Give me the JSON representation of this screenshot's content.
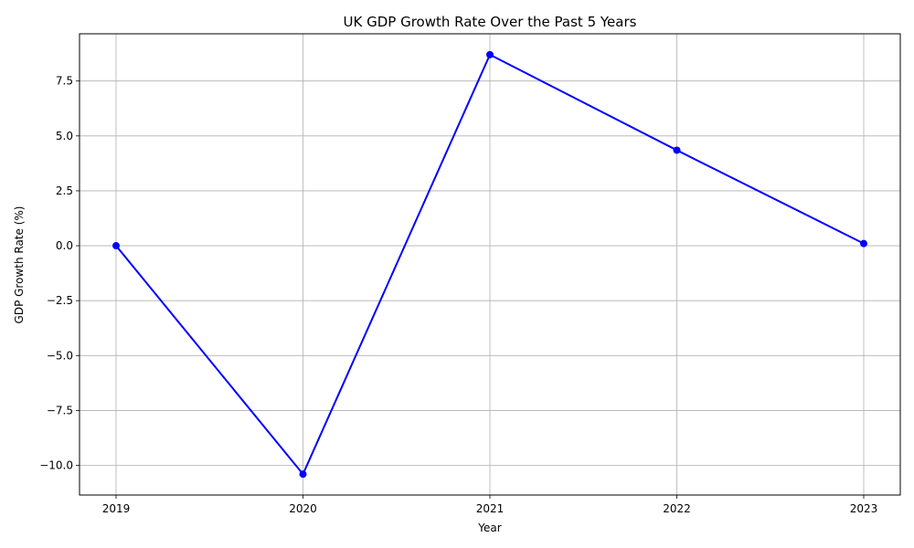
{
  "chart_data": {
    "type": "line",
    "title": "UK GDP Growth Rate Over the Past 5 Years",
    "xlabel": "Year",
    "ylabel": "GDP Growth Rate (%)",
    "x": [
      "2019",
      "2020",
      "2021",
      "2022",
      "2023"
    ],
    "series": [
      {
        "values": [
          0.0,
          -10.4,
          8.7,
          4.35,
          0.1
        ],
        "color": "#0000ff",
        "marker": "circle"
      }
    ],
    "ylim": [
      -11.35,
      9.65
    ],
    "yticks": [
      -10.0,
      -7.5,
      -5.0,
      -2.5,
      0.0,
      2.5,
      5.0,
      7.5
    ],
    "ytick_labels": [
      "−10.0",
      "−7.5",
      "−5.0",
      "−2.5",
      "0.0",
      "2.5",
      "5.0",
      "7.5"
    ],
    "grid": true,
    "legend": false
  }
}
